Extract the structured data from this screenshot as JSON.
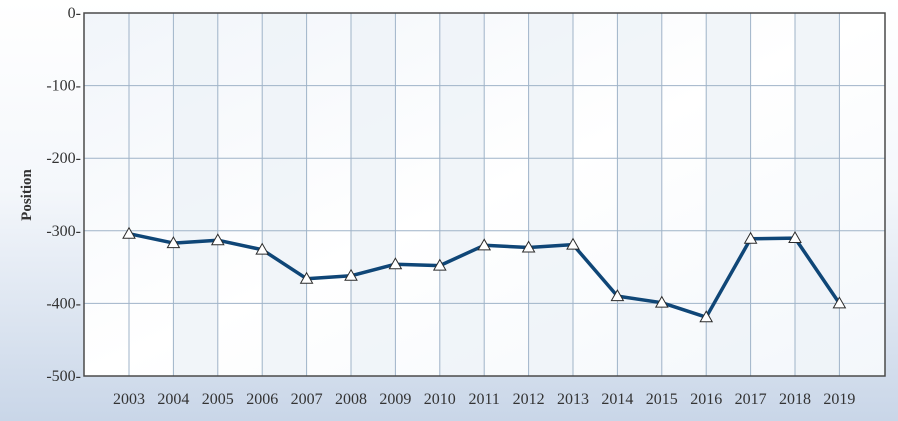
{
  "chart_data": {
    "type": "line",
    "title": "",
    "xlabel": "",
    "ylabel": "Position",
    "ylim": [
      -500,
      0
    ],
    "yticks": [
      0,
      -100,
      -200,
      -300,
      -400,
      -500
    ],
    "ytick_labels": [
      "0-",
      "-100-",
      "-200-",
      "-300-",
      "-400-",
      "-500-"
    ],
    "categories": [
      "2003",
      "2004",
      "2005",
      "2006",
      "2007",
      "2008",
      "2009",
      "2010",
      "2011",
      "2012",
      "2013",
      "2014",
      "2015",
      "2016",
      "2017",
      "2018",
      "2019"
    ],
    "series": [
      {
        "values": [
          -304,
          -317,
          -313,
          -326,
          -366,
          -362,
          -346,
          -348,
          -320,
          -323,
          -319,
          -390,
          -399,
          -419,
          -311,
          -310,
          -400
        ]
      }
    ],
    "grid": true,
    "legend": "none",
    "colors": {
      "line": "#0f4677",
      "marker_fill": "#ffffff",
      "grid": "#9fb3c8",
      "band": "#eef3f8",
      "frame": "#4a4a4a"
    }
  }
}
